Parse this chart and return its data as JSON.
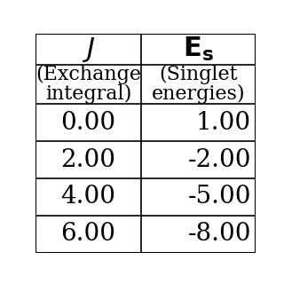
{
  "col1_header": "J",
  "col2_header": "E_s",
  "col1_subheader_line1": "(Exchange",
  "col1_subheader_line2": "integral)",
  "col2_subheader_line1": "(Singlet",
  "col2_subheader_line2": "energies)",
  "rows": [
    [
      "0.00",
      "1.00"
    ],
    [
      "2.00",
      "-2.00"
    ],
    [
      "4.00",
      "-5.00"
    ],
    [
      "6.00",
      "-8.00"
    ]
  ],
  "background_color": "#ffffff",
  "text_color": "#000000",
  "line_color": "#000000",
  "header_fontsize": 22,
  "subheader_fontsize": 16,
  "data_fontsize": 20
}
